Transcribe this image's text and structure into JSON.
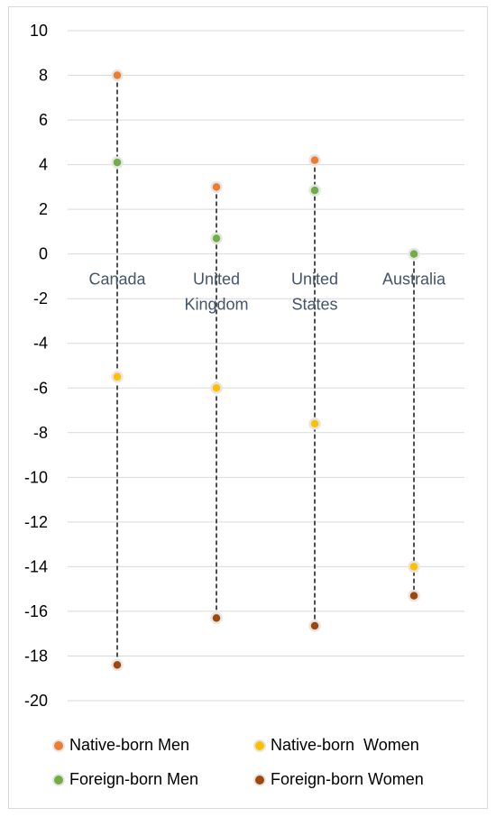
{
  "chart_data": {
    "type": "scatter",
    "title": "",
    "xlabel": "",
    "ylabel": "",
    "ylim": [
      -20,
      10
    ],
    "yticks": [
      "10",
      "8",
      "6",
      "4",
      "2",
      "0",
      "-2",
      "-4",
      "-6",
      "-8",
      "-10",
      "-12",
      "-14",
      "-16",
      "-18",
      "-20"
    ],
    "grid": true,
    "legend_position": "bottom",
    "categories": [
      {
        "line1": "Canada",
        "line2": ""
      },
      {
        "line1": "United",
        "line2": "Kingdom"
      },
      {
        "line1": "United",
        "line2": "States"
      },
      {
        "line1": "Australia",
        "line2": ""
      }
    ],
    "series": [
      {
        "name": "Native-born Men",
        "color": "#ed7d31",
        "values": [
          8.0,
          3.0,
          4.2,
          null
        ]
      },
      {
        "name": "Native-born  Women",
        "color": "#ffc000",
        "values": [
          -5.5,
          -6.0,
          -7.6,
          -14.0
        ]
      },
      {
        "name": "Foreign-born Men",
        "color": "#70ad47",
        "values": [
          4.1,
          0.7,
          2.85,
          0.0
        ]
      },
      {
        "name": "Foreign-born Women",
        "color": "#9e480e",
        "values": [
          -18.4,
          -16.3,
          -16.65,
          -15.3
        ]
      }
    ]
  }
}
